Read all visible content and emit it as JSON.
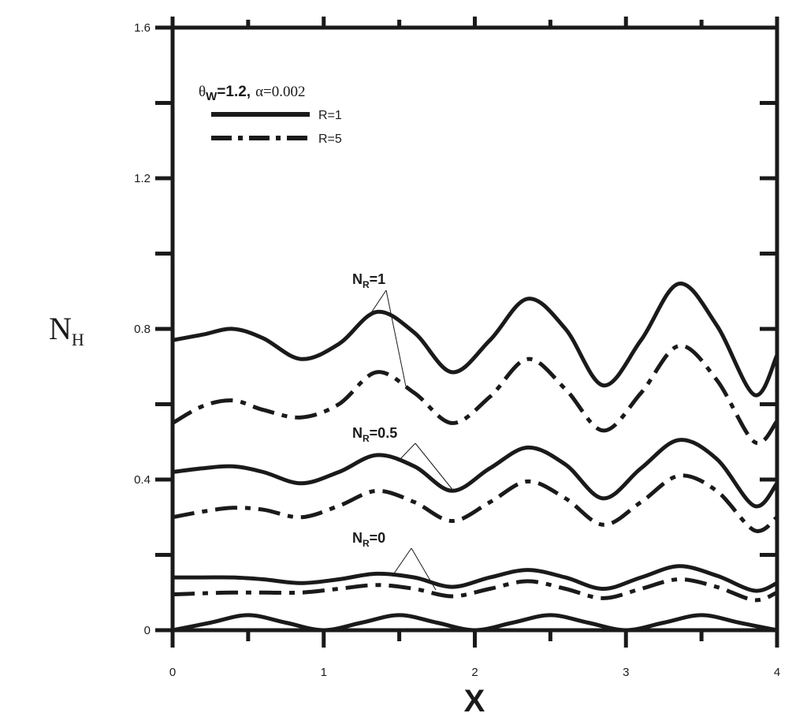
{
  "chart_data": {
    "type": "line",
    "title": "",
    "xlabel": "X",
    "ylabel_main": "N",
    "ylabel_sub": "H",
    "xlim": [
      0,
      4
    ],
    "ylim": [
      0,
      1.6
    ],
    "x_ticks": [
      "0",
      "1",
      "2",
      "3",
      "4"
    ],
    "y_ticks": [
      "0",
      "0.4",
      "0.8",
      "1.2",
      "1.6"
    ],
    "grid": false,
    "legend": {
      "placement": "top-left",
      "title_theta": "θ",
      "title_w": "W",
      "title_value": "=1.2,",
      "title_alpha": "α=0.002",
      "entries": [
        {
          "label": "R=1",
          "style": "solid"
        },
        {
          "label": "R=5",
          "style": "dashdot"
        }
      ]
    },
    "annotations": [
      {
        "main": "N",
        "sub": "R",
        "value": "=1"
      },
      {
        "main": "N",
        "sub": "R",
        "value": "=0.5"
      },
      {
        "main": "N",
        "sub": "R",
        "value": "=0"
      }
    ],
    "series": [
      {
        "group": "NR=1",
        "R": "1",
        "style": "solid",
        "x": [
          0,
          0.2,
          0.4,
          0.6,
          0.85,
          1.1,
          1.35,
          1.6,
          1.85,
          2.1,
          2.35,
          2.6,
          2.85,
          3.1,
          3.35,
          3.6,
          3.85,
          4.0
        ],
        "y": [
          0.77,
          0.785,
          0.8,
          0.775,
          0.72,
          0.76,
          0.845,
          0.79,
          0.685,
          0.77,
          0.88,
          0.8,
          0.65,
          0.77,
          0.92,
          0.81,
          0.625,
          0.73
        ]
      },
      {
        "group": "NR=1",
        "R": "5",
        "style": "dashdot",
        "x": [
          0,
          0.2,
          0.4,
          0.6,
          0.85,
          1.1,
          1.35,
          1.6,
          1.85,
          2.1,
          2.35,
          2.6,
          2.85,
          3.1,
          3.35,
          3.6,
          3.85,
          4.0
        ],
        "y": [
          0.55,
          0.595,
          0.61,
          0.585,
          0.565,
          0.6,
          0.685,
          0.63,
          0.55,
          0.62,
          0.72,
          0.64,
          0.53,
          0.63,
          0.755,
          0.665,
          0.5,
          0.555
        ]
      },
      {
        "group": "NR=0.5",
        "R": "1",
        "style": "solid",
        "x": [
          0,
          0.2,
          0.4,
          0.6,
          0.85,
          1.1,
          1.35,
          1.6,
          1.85,
          2.1,
          2.35,
          2.6,
          2.85,
          3.1,
          3.35,
          3.6,
          3.85,
          4.0
        ],
        "y": [
          0.42,
          0.43,
          0.435,
          0.42,
          0.39,
          0.42,
          0.465,
          0.435,
          0.37,
          0.43,
          0.485,
          0.44,
          0.35,
          0.43,
          0.505,
          0.455,
          0.33,
          0.39
        ]
      },
      {
        "group": "NR=0.5",
        "R": "5",
        "style": "dashdot",
        "x": [
          0,
          0.2,
          0.4,
          0.6,
          0.85,
          1.1,
          1.35,
          1.6,
          1.85,
          2.1,
          2.35,
          2.6,
          2.85,
          3.1,
          3.35,
          3.6,
          3.85,
          4.0
        ],
        "y": [
          0.3,
          0.315,
          0.325,
          0.32,
          0.3,
          0.33,
          0.37,
          0.34,
          0.29,
          0.34,
          0.395,
          0.35,
          0.28,
          0.34,
          0.41,
          0.37,
          0.265,
          0.3
        ]
      },
      {
        "group": "NR=0",
        "R": "1",
        "style": "solid",
        "x": [
          0,
          0.2,
          0.4,
          0.6,
          0.85,
          1.1,
          1.35,
          1.6,
          1.85,
          2.1,
          2.35,
          2.6,
          2.85,
          3.1,
          3.35,
          3.6,
          3.85,
          4.0
        ],
        "y": [
          0.14,
          0.14,
          0.14,
          0.135,
          0.125,
          0.135,
          0.15,
          0.14,
          0.115,
          0.14,
          0.16,
          0.14,
          0.11,
          0.14,
          0.17,
          0.145,
          0.105,
          0.125
        ]
      },
      {
        "group": "NR=0",
        "R": "5",
        "style": "dashdot",
        "x": [
          0,
          0.2,
          0.4,
          0.6,
          0.85,
          1.1,
          1.35,
          1.6,
          1.85,
          2.1,
          2.35,
          2.6,
          2.85,
          3.1,
          3.35,
          3.6,
          3.85,
          4.0
        ],
        "y": [
          0.095,
          0.098,
          0.1,
          0.1,
          0.1,
          0.11,
          0.12,
          0.11,
          0.09,
          0.11,
          0.13,
          0.11,
          0.085,
          0.11,
          0.135,
          0.115,
          0.08,
          0.1
        ]
      },
      {
        "group": "bottom",
        "R": "1",
        "style": "solid",
        "x": [
          0,
          0.25,
          0.5,
          0.75,
          1.0,
          1.25,
          1.5,
          1.75,
          2.0,
          2.25,
          2.5,
          2.75,
          3.0,
          3.25,
          3.5,
          3.75,
          4.0
        ],
        "y": [
          0.0,
          0.02,
          0.04,
          0.02,
          0.0,
          0.02,
          0.04,
          0.02,
          0.0,
          0.02,
          0.04,
          0.02,
          0.0,
          0.02,
          0.04,
          0.02,
          0.0
        ]
      }
    ]
  }
}
